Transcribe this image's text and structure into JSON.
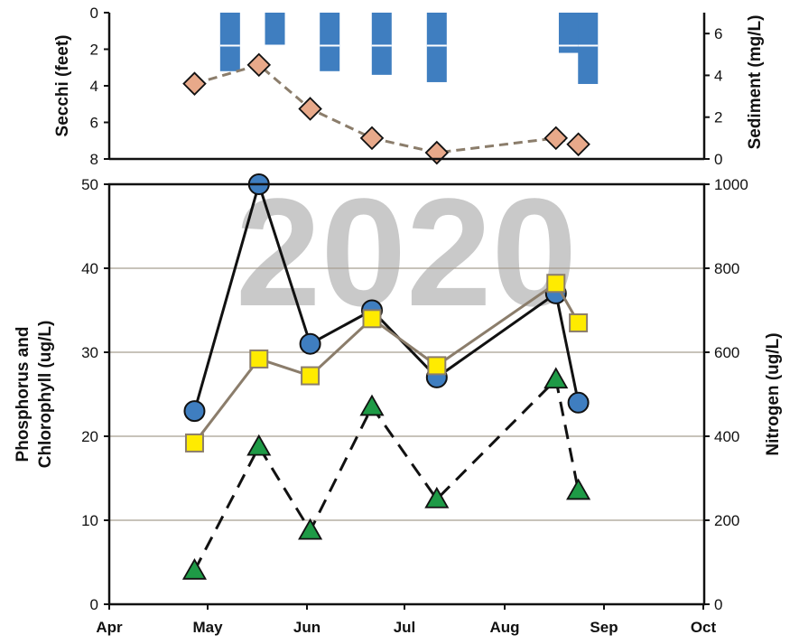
{
  "chart_data": [
    {
      "panel": "top",
      "type": "bar+line",
      "months": [
        "Apr",
        "May",
        "Jun",
        "Jul",
        "Aug",
        "Sep",
        "Oct"
      ],
      "secchi_axis": {
        "label": "Secchi (feet)",
        "ticks": [
          "0",
          "2",
          "4",
          "6",
          "8"
        ],
        "range": [
          0,
          8
        ],
        "inverted": true
      },
      "sediment_axis": {
        "label": "Sediment (mg/L)",
        "ticks": [
          "0",
          "2",
          "4",
          "6"
        ],
        "range": [
          0,
          7
        ]
      },
      "secchi_bars": {
        "color": "#3f7ec0",
        "x": [
          "2020-05-08",
          "2020-05-22",
          "2020-06-08",
          "2020-06-24",
          "2020-07-11",
          "2020-08-21",
          "2020-08-27"
        ],
        "values": [
          3.2,
          1.8,
          3.2,
          3.4,
          3.8,
          2.2,
          3.9
        ]
      },
      "sediment_series": {
        "marker_color": "#e8a98a",
        "line_color": "#8b7d6b",
        "x": [
          "2020-04-27",
          "2020-05-17",
          "2020-06-02",
          "2020-06-21",
          "2020-07-11",
          "2020-08-17",
          "2020-08-24"
        ],
        "values": [
          3.6,
          4.5,
          2.4,
          1.0,
          0.3,
          1.0,
          0.7
        ]
      }
    },
    {
      "panel": "bottom",
      "type": "line",
      "watermark": "2020",
      "months": [
        "Apr",
        "May",
        "Jun",
        "Jul",
        "Aug",
        "Sep",
        "Oct"
      ],
      "left_axis": {
        "label_lines": [
          "Phosphorus and",
          "Chlorophyll (ug/L)"
        ],
        "ticks": [
          "0",
          "10",
          "20",
          "30",
          "40",
          "50"
        ],
        "range": [
          0,
          50
        ]
      },
      "right_axis": {
        "label": "Nitrogen (ug/L)",
        "ticks": [
          "0",
          "200",
          "400",
          "600",
          "800",
          "1000"
        ],
        "range": [
          0,
          1000
        ]
      },
      "grid": true,
      "series": [
        {
          "marker": "circle",
          "color": "#3f7ec0",
          "line_color": "#111111",
          "axis": "left",
          "x": [
            "2020-04-27",
            "2020-05-17",
            "2020-06-02",
            "2020-06-21",
            "2020-07-11",
            "2020-08-17",
            "2020-08-24"
          ],
          "values": [
            23,
            50,
            31,
            35,
            27,
            37,
            24
          ]
        },
        {
          "marker": "square",
          "color": "#ffeb00",
          "line_color": "#8b7d6b",
          "axis": "left",
          "x": [
            "2020-04-27",
            "2020-05-17",
            "2020-06-02",
            "2020-06-21",
            "2020-07-11",
            "2020-08-17",
            "2020-08-24"
          ],
          "values": [
            19.2,
            29.2,
            27.2,
            34.0,
            28.4,
            38.2,
            33.5
          ]
        },
        {
          "marker": "triangle",
          "color": "#1e9a46",
          "line_color": "#111111",
          "dashed": true,
          "axis": "right",
          "x": [
            "2020-04-27",
            "2020-05-17",
            "2020-06-02",
            "2020-06-21",
            "2020-07-11",
            "2020-08-17",
            "2020-08-24"
          ],
          "values": [
            80,
            375,
            175,
            470,
            250,
            535,
            270
          ]
        }
      ]
    }
  ]
}
